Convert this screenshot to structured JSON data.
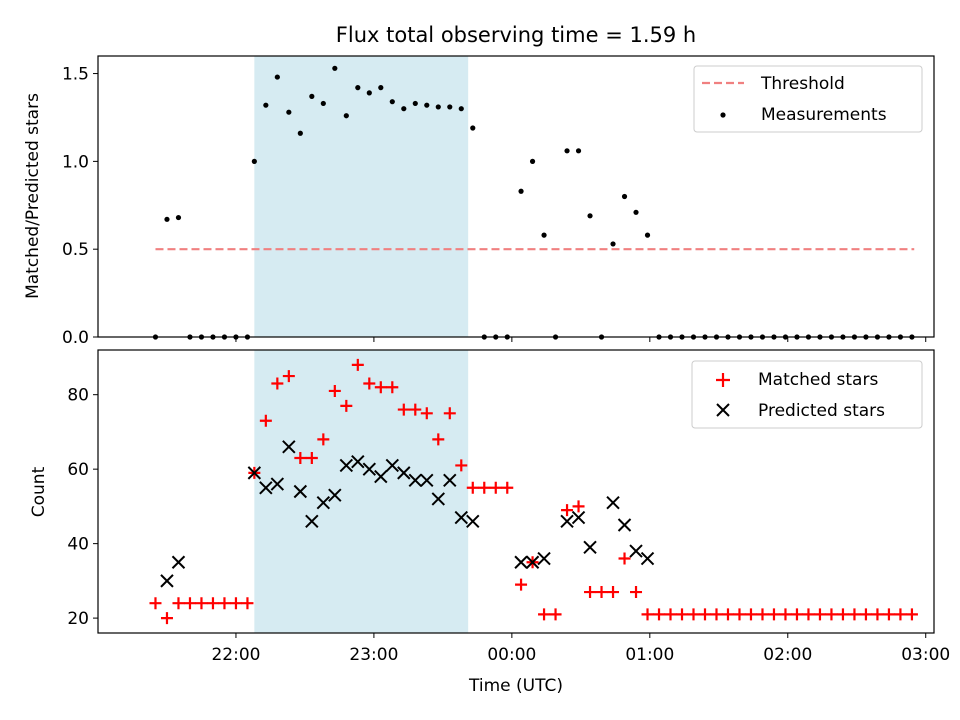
{
  "title": "Flux total observing time = 1.59 h",
  "colors": {
    "threshold": "#f08080",
    "measurement": "#000000",
    "matched": "#ff0000",
    "predicted": "#000000",
    "shade": "#add8e6"
  },
  "chart_data": [
    {
      "type": "scatter",
      "panel": "top",
      "ylabel": "Matched/Predicted stars",
      "ylim": [
        0,
        1.6
      ],
      "yticks": [
        "0.0",
        "0.5",
        "1.0",
        "1.5"
      ],
      "xlim_hours": [
        21.0,
        27.06
      ],
      "shaded_span": [
        "22:08",
        "23:41"
      ],
      "legend": [
        {
          "label": "Threshold",
          "style": "dashed-line"
        },
        {
          "label": "Measurements",
          "style": "dot"
        }
      ],
      "threshold": {
        "value": 0.5,
        "x": [
          "21:25",
          "02:55"
        ]
      },
      "measurements": [
        [
          "21:25",
          0
        ],
        [
          "21:30",
          0.67
        ],
        [
          "21:35",
          0.68
        ],
        [
          "21:40",
          0
        ],
        [
          "21:45",
          0
        ],
        [
          "21:50",
          0
        ],
        [
          "21:55",
          0
        ],
        [
          "22:00",
          0
        ],
        [
          "22:05",
          0
        ],
        [
          "22:08",
          1.0
        ],
        [
          "22:13",
          1.32
        ],
        [
          "22:18",
          1.48
        ],
        [
          "22:23",
          1.28
        ],
        [
          "22:28",
          1.16
        ],
        [
          "22:33",
          1.37
        ],
        [
          "22:38",
          1.33
        ],
        [
          "22:43",
          1.53
        ],
        [
          "22:48",
          1.26
        ],
        [
          "22:53",
          1.42
        ],
        [
          "22:58",
          1.39
        ],
        [
          "23:03",
          1.42
        ],
        [
          "23:08",
          1.34
        ],
        [
          "23:13",
          1.3
        ],
        [
          "23:18",
          1.33
        ],
        [
          "23:23",
          1.32
        ],
        [
          "23:28",
          1.31
        ],
        [
          "23:33",
          1.31
        ],
        [
          "23:38",
          1.3
        ],
        [
          "23:43",
          1.19
        ],
        [
          "23:48",
          0
        ],
        [
          "23:53",
          0
        ],
        [
          "23:58",
          0
        ],
        [
          "00:04",
          0.83
        ],
        [
          "00:09",
          1.0
        ],
        [
          "00:14",
          0.58
        ],
        [
          "00:19",
          0
        ],
        [
          "00:24",
          1.06
        ],
        [
          "00:29",
          1.06
        ],
        [
          "00:34",
          0.69
        ],
        [
          "00:39",
          0
        ],
        [
          "00:44",
          0.53
        ],
        [
          "00:49",
          0.8
        ],
        [
          "00:54",
          0.71
        ],
        [
          "00:59",
          0.58
        ],
        [
          "01:04",
          0
        ],
        [
          "01:09",
          0
        ],
        [
          "01:14",
          0
        ],
        [
          "01:19",
          0
        ],
        [
          "01:24",
          0
        ],
        [
          "01:29",
          0
        ],
        [
          "01:34",
          0
        ],
        [
          "01:39",
          0
        ],
        [
          "01:44",
          0
        ],
        [
          "01:49",
          0
        ],
        [
          "01:54",
          0
        ],
        [
          "01:59",
          0
        ],
        [
          "02:04",
          0
        ],
        [
          "02:09",
          0
        ],
        [
          "02:14",
          0
        ],
        [
          "02:19",
          0
        ],
        [
          "02:24",
          0
        ],
        [
          "02:29",
          0
        ],
        [
          "02:34",
          0
        ],
        [
          "02:39",
          0
        ],
        [
          "02:44",
          0
        ],
        [
          "02:49",
          0
        ],
        [
          "02:54",
          0
        ]
      ]
    },
    {
      "type": "scatter",
      "panel": "bottom",
      "xlabel": "Time (UTC)",
      "ylabel": "Count",
      "ylim": [
        16,
        92
      ],
      "yticks": [
        "20",
        "40",
        "60",
        "80"
      ],
      "xticks": [
        "22:00",
        "23:00",
        "00:00",
        "01:00",
        "02:00",
        "03:00"
      ],
      "xlim_hours": [
        21.0,
        27.06
      ],
      "shaded_span": [
        "22:08",
        "23:41"
      ],
      "legend": [
        {
          "label": "Matched stars",
          "marker": "plus"
        },
        {
          "label": "Predicted stars",
          "marker": "x"
        }
      ],
      "matched": [
        [
          "21:25",
          24
        ],
        [
          "21:30",
          20
        ],
        [
          "21:35",
          24
        ],
        [
          "21:40",
          24
        ],
        [
          "21:45",
          24
        ],
        [
          "21:50",
          24
        ],
        [
          "21:55",
          24
        ],
        [
          "22:00",
          24
        ],
        [
          "22:05",
          24
        ],
        [
          "22:08",
          59
        ],
        [
          "22:13",
          73
        ],
        [
          "22:18",
          83
        ],
        [
          "22:23",
          85
        ],
        [
          "22:28",
          63
        ],
        [
          "22:33",
          63
        ],
        [
          "22:38",
          68
        ],
        [
          "22:43",
          81
        ],
        [
          "22:48",
          77
        ],
        [
          "22:53",
          88
        ],
        [
          "22:58",
          83
        ],
        [
          "23:03",
          82
        ],
        [
          "23:08",
          82
        ],
        [
          "23:13",
          76
        ],
        [
          "23:18",
          76
        ],
        [
          "23:23",
          75
        ],
        [
          "23:28",
          68
        ],
        [
          "23:33",
          75
        ],
        [
          "23:38",
          61
        ],
        [
          "23:43",
          55
        ],
        [
          "23:48",
          55
        ],
        [
          "23:53",
          55
        ],
        [
          "23:58",
          55
        ],
        [
          "00:04",
          29
        ],
        [
          "00:09",
          35
        ],
        [
          "00:14",
          21
        ],
        [
          "00:19",
          21
        ],
        [
          "00:24",
          49
        ],
        [
          "00:29",
          50
        ],
        [
          "00:34",
          27
        ],
        [
          "00:39",
          27
        ],
        [
          "00:44",
          27
        ],
        [
          "00:49",
          36
        ],
        [
          "00:54",
          27
        ],
        [
          "00:59",
          21
        ],
        [
          "01:04",
          21
        ],
        [
          "01:09",
          21
        ],
        [
          "01:14",
          21
        ],
        [
          "01:19",
          21
        ],
        [
          "01:24",
          21
        ],
        [
          "01:29",
          21
        ],
        [
          "01:34",
          21
        ],
        [
          "01:39",
          21
        ],
        [
          "01:44",
          21
        ],
        [
          "01:49",
          21
        ],
        [
          "01:54",
          21
        ],
        [
          "01:59",
          21
        ],
        [
          "02:04",
          21
        ],
        [
          "02:09",
          21
        ],
        [
          "02:14",
          21
        ],
        [
          "02:19",
          21
        ],
        [
          "02:24",
          21
        ],
        [
          "02:29",
          21
        ],
        [
          "02:34",
          21
        ],
        [
          "02:39",
          21
        ],
        [
          "02:44",
          21
        ],
        [
          "02:49",
          21
        ],
        [
          "02:54",
          21
        ]
      ],
      "predicted": [
        [
          "21:30",
          30
        ],
        [
          "21:35",
          35
        ],
        [
          "22:08",
          59
        ],
        [
          "22:13",
          55
        ],
        [
          "22:18",
          56
        ],
        [
          "22:23",
          66
        ],
        [
          "22:28",
          54
        ],
        [
          "22:33",
          46
        ],
        [
          "22:38",
          51
        ],
        [
          "22:43",
          53
        ],
        [
          "22:48",
          61
        ],
        [
          "22:53",
          62
        ],
        [
          "22:58",
          60
        ],
        [
          "23:03",
          58
        ],
        [
          "23:08",
          61
        ],
        [
          "23:13",
          59
        ],
        [
          "23:18",
          57
        ],
        [
          "23:23",
          57
        ],
        [
          "23:28",
          52
        ],
        [
          "23:33",
          57
        ],
        [
          "23:38",
          47
        ],
        [
          "23:43",
          46
        ],
        [
          "00:04",
          35
        ],
        [
          "00:09",
          35
        ],
        [
          "00:14",
          36
        ],
        [
          "00:24",
          46
        ],
        [
          "00:29",
          47
        ],
        [
          "00:34",
          39
        ],
        [
          "00:44",
          51
        ],
        [
          "00:49",
          45
        ],
        [
          "00:54",
          38
        ],
        [
          "00:59",
          36
        ]
      ]
    }
  ]
}
